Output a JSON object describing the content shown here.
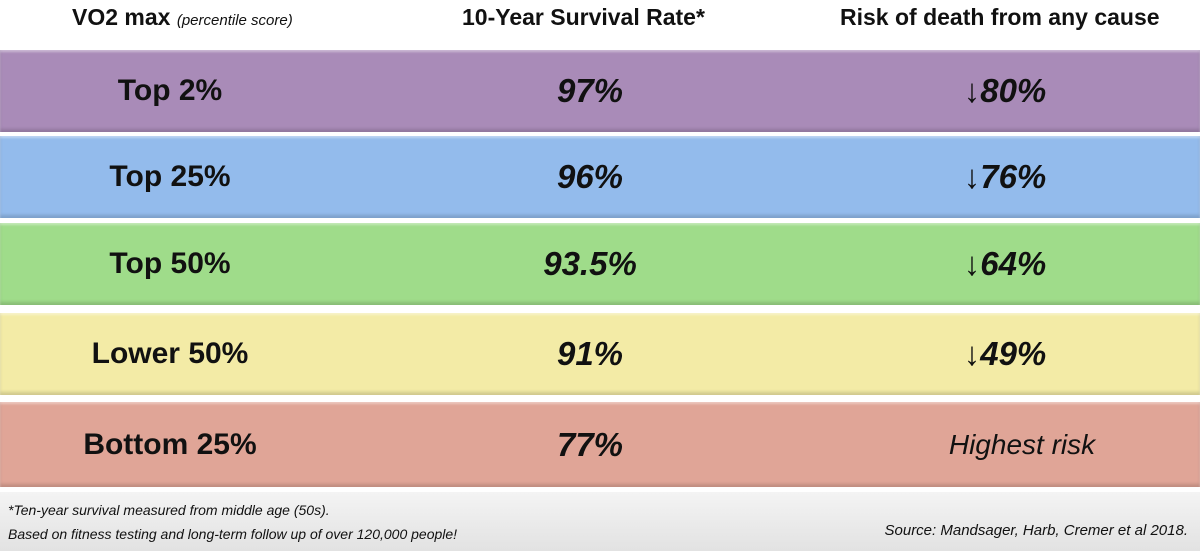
{
  "header": {
    "col1": "VO2 max",
    "col1_note": "(percentile score)",
    "col2": "10-Year Survival Rate*",
    "col3": "Risk of death from any cause"
  },
  "table": {
    "rows": [
      [
        "Top 2%",
        "97%",
        "↓80%"
      ],
      [
        "Top 25%",
        "96%",
        "↓76%"
      ],
      [
        "Top 50%",
        "93.5%",
        "↓64%"
      ],
      [
        "Lower 50%",
        "91%",
        "↓49%"
      ],
      [
        "Bottom 25%",
        "77%",
        "Highest risk"
      ]
    ]
  },
  "footer": {
    "note1": "*Ten-year survival measured from middle age (50s).",
    "note2": "Based on fitness testing and long-term follow up of over 120,000 people!",
    "source": "Source: Mandsager, Harb, Cremer et al 2018."
  }
}
